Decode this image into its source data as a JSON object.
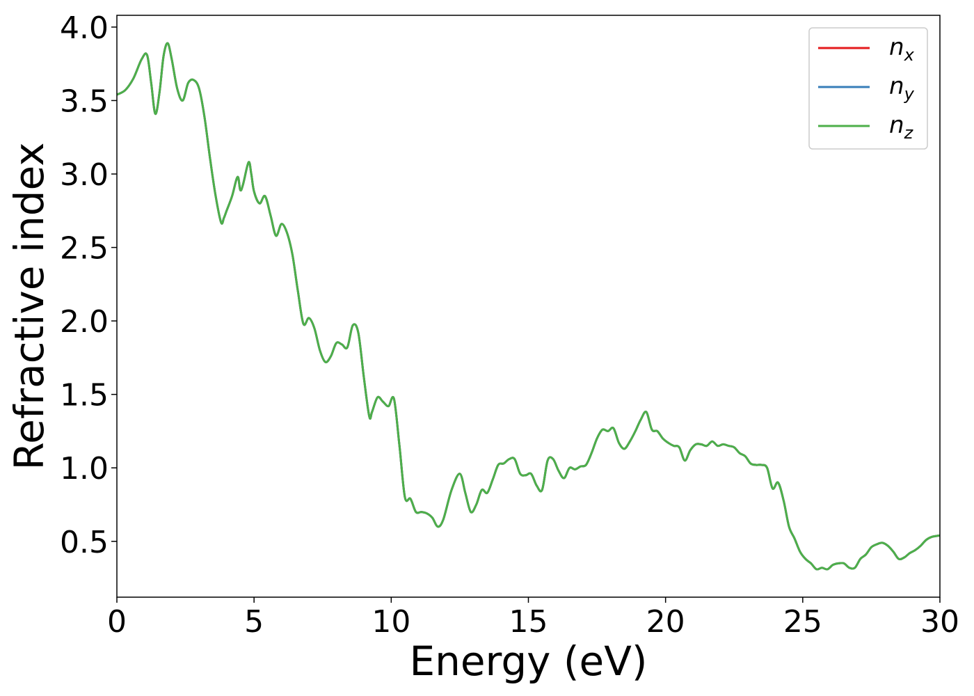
{
  "chart_data": {
    "type": "line",
    "title": "",
    "xlabel": "Energy (eV)",
    "ylabel": "Refractive index",
    "xlim": [
      0,
      30
    ],
    "ylim": [
      0.12,
      4.08
    ],
    "xticks": [
      0,
      5,
      10,
      15,
      20,
      25,
      30
    ],
    "xtick_labels": [
      "0",
      "5",
      "10",
      "15",
      "20",
      "25",
      "30"
    ],
    "yticks": [
      0.5,
      1.0,
      1.5,
      2.0,
      2.5,
      3.0,
      3.5,
      4.0
    ],
    "ytick_labels": [
      "0.5",
      "1.0",
      "1.5",
      "2.0",
      "2.5",
      "3.0",
      "3.5",
      "4.0"
    ],
    "grid": false,
    "legend_position": "top-right",
    "x": [
      0,
      0.3,
      0.6,
      0.9,
      1.1,
      1.25,
      1.4,
      1.55,
      1.7,
      1.85,
      2.0,
      2.2,
      2.4,
      2.6,
      2.8,
      3.0,
      3.2,
      3.4,
      3.6,
      3.8,
      3.9,
      4.0,
      4.2,
      4.4,
      4.5,
      4.6,
      4.8,
      4.9,
      5.0,
      5.2,
      5.4,
      5.6,
      5.8,
      6.0,
      6.2,
      6.4,
      6.6,
      6.8,
      7.0,
      7.2,
      7.4,
      7.6,
      7.8,
      8.0,
      8.2,
      8.4,
      8.6,
      8.8,
      9.0,
      9.2,
      9.3,
      9.5,
      9.7,
      9.9,
      10.1,
      10.3,
      10.5,
      10.7,
      10.9,
      11.1,
      11.3,
      11.5,
      11.7,
      11.9,
      12.2,
      12.5,
      12.7,
      12.9,
      13.1,
      13.3,
      13.5,
      13.7,
      13.9,
      14.1,
      14.3,
      14.5,
      14.7,
      14.9,
      15.1,
      15.3,
      15.5,
      15.7,
      15.9,
      16.1,
      16.3,
      16.5,
      16.7,
      16.9,
      17.1,
      17.3,
      17.5,
      17.7,
      17.9,
      18.1,
      18.3,
      18.5,
      18.7,
      18.9,
      19.1,
      19.3,
      19.5,
      19.7,
      19.9,
      20.1,
      20.3,
      20.5,
      20.7,
      20.9,
      21.1,
      21.3,
      21.5,
      21.7,
      21.9,
      22.1,
      22.3,
      22.5,
      22.7,
      22.9,
      23.1,
      23.3,
      23.5,
      23.7,
      23.9,
      24.1,
      24.3,
      24.5,
      24.7,
      24.9,
      25.1,
      25.3,
      25.5,
      25.7,
      25.9,
      26.1,
      26.3,
      26.5,
      26.7,
      26.9,
      27.1,
      27.3,
      27.5,
      27.7,
      27.9,
      28.1,
      28.3,
      28.5,
      28.7,
      28.9,
      29.1,
      29.3,
      29.5,
      29.7,
      30.0
    ],
    "series": [
      {
        "name": "n_x",
        "color": "#e41a1c",
        "linewidth": 3
      },
      {
        "name": "n_y",
        "color": "#377eb8",
        "linewidth": 3
      },
      {
        "name": "n_z",
        "color": "#4daf4a",
        "linewidth": 3
      }
    ],
    "y": [
      3.54,
      3.57,
      3.65,
      3.78,
      3.81,
      3.62,
      3.41,
      3.55,
      3.8,
      3.89,
      3.78,
      3.58,
      3.5,
      3.62,
      3.64,
      3.58,
      3.38,
      3.1,
      2.85,
      2.67,
      2.7,
      2.75,
      2.85,
      2.98,
      2.89,
      2.93,
      3.08,
      3.0,
      2.88,
      2.8,
      2.85,
      2.72,
      2.58,
      2.66,
      2.6,
      2.45,
      2.2,
      1.98,
      2.02,
      1.95,
      1.8,
      1.72,
      1.76,
      1.85,
      1.84,
      1.82,
      1.97,
      1.92,
      1.62,
      1.35,
      1.38,
      1.48,
      1.45,
      1.42,
      1.47,
      1.15,
      0.8,
      0.79,
      0.7,
      0.7,
      0.69,
      0.66,
      0.6,
      0.65,
      0.85,
      0.96,
      0.83,
      0.7,
      0.75,
      0.85,
      0.83,
      0.92,
      1.02,
      1.03,
      1.06,
      1.06,
      0.96,
      0.95,
      0.96,
      0.88,
      0.85,
      1.05,
      1.06,
      0.98,
      0.93,
      1.0,
      0.99,
      1.01,
      1.02,
      1.1,
      1.2,
      1.26,
      1.25,
      1.27,
      1.17,
      1.13,
      1.18,
      1.25,
      1.33,
      1.38,
      1.26,
      1.25,
      1.2,
      1.17,
      1.15,
      1.14,
      1.05,
      1.12,
      1.16,
      1.16,
      1.15,
      1.18,
      1.15,
      1.16,
      1.15,
      1.14,
      1.1,
      1.08,
      1.03,
      1.02,
      1.02,
      1.0,
      0.86,
      0.9,
      0.78,
      0.6,
      0.52,
      0.43,
      0.38,
      0.35,
      0.31,
      0.32,
      0.31,
      0.34,
      0.35,
      0.35,
      0.32,
      0.32,
      0.38,
      0.41,
      0.46,
      0.48,
      0.49,
      0.47,
      0.43,
      0.38,
      0.39,
      0.42,
      0.44,
      0.47,
      0.51,
      0.53,
      0.54
    ]
  }
}
